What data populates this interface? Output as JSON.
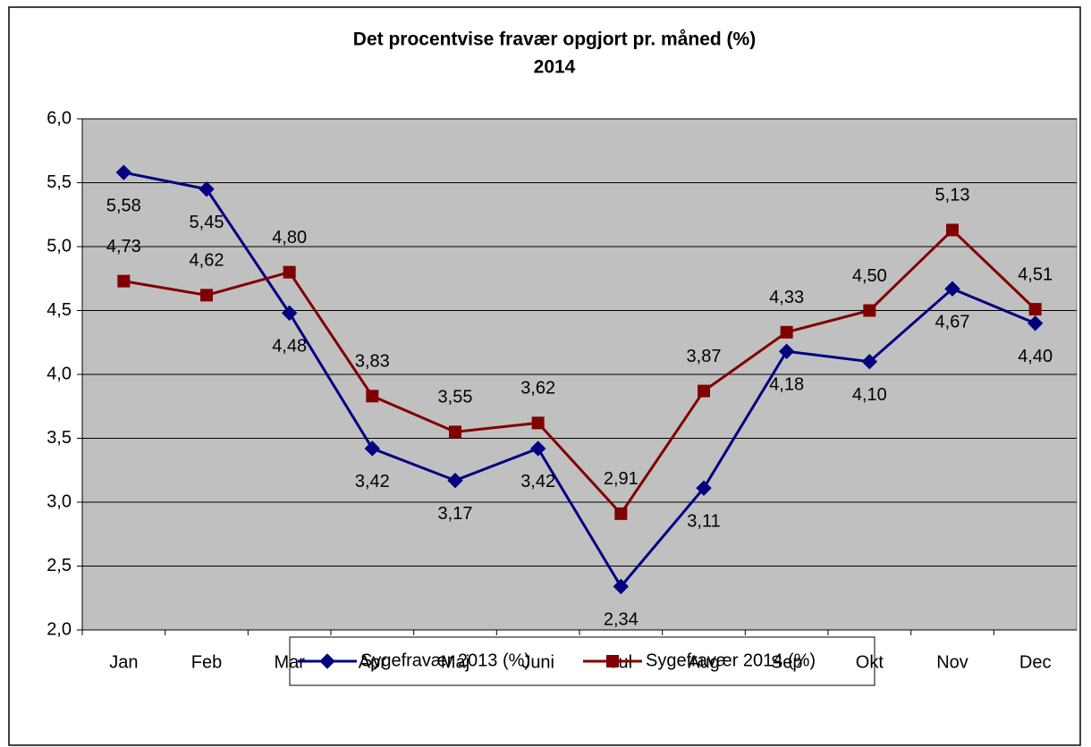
{
  "chart_data": {
    "type": "line",
    "title": [
      "Det procentvise fravær opgjort pr. måned (%)",
      "2014"
    ],
    "categories": [
      "Jan",
      "Feb",
      "Mar",
      "Apr",
      "Maj",
      "Juni",
      "Jul",
      "Aug",
      "Sep",
      "Okt",
      "Nov",
      "Dec"
    ],
    "series": [
      {
        "name": "Sygefravær 2013 (%)",
        "color": "#000080",
        "marker": "diamond",
        "values": [
          5.58,
          5.45,
          4.48,
          3.42,
          3.17,
          3.42,
          2.34,
          3.11,
          4.18,
          4.1,
          4.67,
          4.4
        ],
        "value_labels": [
          "5,58",
          "5,45",
          "4,48",
          "3,42",
          "3,17",
          "3,42",
          "2,34",
          "3,11",
          "4,18",
          "4,10",
          "4,67",
          "4,40"
        ]
      },
      {
        "name": "Sygefravær 2014 (%)",
        "color": "#800000",
        "marker": "square",
        "values": [
          4.73,
          4.62,
          4.8,
          3.83,
          3.55,
          3.62,
          2.91,
          3.87,
          4.33,
          4.5,
          5.13,
          4.51
        ],
        "value_labels": [
          "4,73",
          "4,62",
          "4,80",
          "3,83",
          "3,55",
          "3,62",
          "2,91",
          "3,87",
          "4,33",
          "4,50",
          "5,13",
          "4,51"
        ]
      }
    ],
    "ylim": [
      2.0,
      6.0
    ],
    "yticks": [
      {
        "value": 2.0,
        "label": "2,0"
      },
      {
        "value": 2.5,
        "label": "2,5"
      },
      {
        "value": 3.0,
        "label": "3,0"
      },
      {
        "value": 3.5,
        "label": "3,5"
      },
      {
        "value": 4.0,
        "label": "4,0"
      },
      {
        "value": 4.5,
        "label": "4,5"
      },
      {
        "value": 5.0,
        "label": "5,0"
      },
      {
        "value": 5.5,
        "label": "5,5"
      },
      {
        "value": 6.0,
        "label": "6,0"
      }
    ],
    "grid": true,
    "legend": "bottom"
  }
}
